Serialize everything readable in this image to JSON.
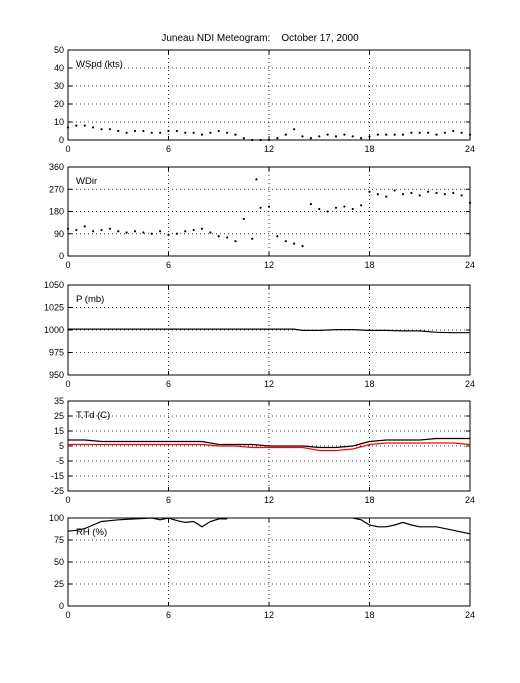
{
  "title": "Juneau NDI Meteogram:    October 17, 2000",
  "chart_data": [
    {
      "type": "scatter",
      "label": "WSpd (kts)",
      "ylim": [
        0,
        50
      ],
      "yticks": [
        0,
        10,
        20,
        30,
        40,
        50
      ],
      "xlim": [
        0,
        24
      ],
      "xticks": [
        0,
        6,
        12,
        18,
        24
      ],
      "grid": true,
      "series": [
        {
          "color": "#000000",
          "x": [
            0,
            0.5,
            1,
            1.5,
            2,
            2.5,
            3,
            3.5,
            4,
            4.5,
            5,
            5.5,
            6,
            6.5,
            7,
            7.5,
            8,
            8.5,
            9,
            9.5,
            10,
            10.5,
            11,
            11.5,
            12,
            12.5,
            13,
            13.5,
            14,
            14.5,
            15,
            15.5,
            16,
            16.5,
            17,
            17.5,
            18,
            18.5,
            19,
            19.5,
            20,
            20.5,
            21,
            21.5,
            22,
            22.5,
            23,
            23.5,
            24
          ],
          "y": [
            7,
            8,
            8,
            7,
            6,
            6,
            5,
            4,
            5,
            5,
            4,
            4,
            5,
            5,
            4,
            4,
            3,
            4,
            5,
            4,
            3,
            1,
            0,
            0,
            0,
            1,
            3,
            6,
            2,
            1,
            2,
            3,
            2,
            3,
            2,
            1,
            2,
            3,
            3,
            3,
            3,
            4,
            4,
            4,
            3,
            4,
            5,
            4,
            3
          ]
        }
      ]
    },
    {
      "type": "scatter",
      "label": "WDir",
      "ylim": [
        0,
        360
      ],
      "yticks": [
        0,
        90,
        180,
        270,
        360
      ],
      "xlim": [
        0,
        24
      ],
      "xticks": [
        0,
        6,
        12,
        18,
        24
      ],
      "grid": true,
      "series": [
        {
          "color": "#000000",
          "x": [
            0,
            0.5,
            1,
            1.5,
            2,
            2.5,
            3,
            3.5,
            4,
            4.5,
            5,
            5.5,
            6,
            6.5,
            7,
            7.5,
            8,
            8.5,
            9,
            9.5,
            10,
            10.5,
            11,
            11.25,
            11.5,
            12,
            12.5,
            13,
            13.5,
            14,
            14.5,
            15,
            15.5,
            16,
            16.5,
            17,
            17.5,
            18,
            18.5,
            19,
            19.5,
            20,
            20.5,
            21,
            21.5,
            22,
            22.5,
            23,
            23.5,
            24
          ],
          "y": [
            110,
            105,
            120,
            100,
            105,
            110,
            100,
            95,
            100,
            95,
            90,
            100,
            85,
            90,
            100,
            105,
            110,
            95,
            80,
            75,
            60,
            150,
            70,
            310,
            195,
            200,
            80,
            60,
            50,
            40,
            210,
            190,
            180,
            195,
            200,
            190,
            205,
            260,
            250,
            240,
            265,
            250,
            255,
            245,
            260,
            255,
            250,
            255,
            245,
            215
          ]
        }
      ]
    },
    {
      "type": "line",
      "label": "P (mb)",
      "ylim": [
        950,
        1050
      ],
      "yticks": [
        950,
        975,
        1000,
        1025,
        1050
      ],
      "xlim": [
        0,
        24
      ],
      "xticks": [
        0,
        6,
        12,
        18,
        24
      ],
      "grid": true,
      "series": [
        {
          "color": "#000000",
          "x": [
            0,
            3,
            6,
            9,
            12,
            13.5,
            14,
            15,
            16,
            17,
            18,
            19,
            20,
            21,
            22,
            23,
            24
          ],
          "y": [
            1001,
            1001,
            1001,
            1001,
            1001,
            1001,
            999.5,
            999.5,
            1000.5,
            1000.5,
            999.5,
            999.5,
            999,
            999,
            997.5,
            997,
            997
          ]
        }
      ]
    },
    {
      "type": "line",
      "label": "T,Td (C)",
      "ylim": [
        -25,
        35
      ],
      "yticks": [
        -25,
        -15,
        -5,
        5,
        15,
        25,
        35
      ],
      "xlim": [
        0,
        24
      ],
      "xticks": [
        0,
        6,
        12,
        18,
        24
      ],
      "grid": true,
      "series": [
        {
          "color": "#000000",
          "x": [
            0,
            1,
            2,
            3,
            4,
            5,
            6,
            7,
            8,
            9,
            10,
            11,
            12,
            13,
            14,
            15,
            16,
            17,
            18,
            19,
            20,
            21,
            22,
            23,
            24
          ],
          "y": [
            9,
            9,
            8,
            8,
            8,
            8,
            8,
            8,
            8,
            6,
            6,
            6,
            5,
            5,
            5,
            4,
            4,
            5,
            8,
            9,
            9,
            9,
            10,
            10,
            10
          ]
        },
        {
          "color": "#ff0000",
          "x": [
            0,
            1,
            2,
            3,
            4,
            5,
            6,
            7,
            8,
            9,
            10,
            11,
            12,
            13,
            14,
            15,
            16,
            17,
            18,
            19,
            20,
            21,
            22,
            23,
            24
          ],
          "y": [
            6,
            6,
            6,
            6,
            6,
            6,
            6,
            6,
            6,
            5,
            5,
            4,
            4,
            4,
            4,
            2,
            2,
            3,
            6,
            7,
            7,
            7,
            7,
            7,
            6
          ]
        }
      ]
    },
    {
      "type": "line",
      "label": "RH (%)",
      "ylim": [
        0,
        100
      ],
      "yticks": [
        0,
        25,
        50,
        75,
        100
      ],
      "xlim": [
        0,
        24
      ],
      "xticks": [
        0,
        6,
        12,
        18,
        24
      ],
      "grid": true,
      "series": [
        {
          "color": "#000000",
          "segments": [
            {
              "x": [
                0,
                0.5,
                1,
                1.5,
                2,
                3,
                4,
                5,
                5.5,
                6,
                6.5,
                7,
                7.5,
                8,
                8.5,
                9,
                9.5
              ],
              "y": [
                85,
                86,
                88,
                92,
                96,
                98,
                99,
                100,
                98,
                100,
                97,
                95,
                96,
                90,
                96,
                99,
                99
              ]
            },
            {
              "x": [
                17,
                17.5,
                18,
                18.5,
                19,
                19.5,
                20,
                20.5,
                21,
                21.5,
                22,
                22.5,
                23,
                23.5,
                24
              ],
              "y": [
                100,
                98,
                92,
                90,
                90,
                92,
                95,
                92,
                90,
                90,
                90,
                88,
                86,
                84,
                82
              ]
            }
          ]
        }
      ]
    }
  ]
}
